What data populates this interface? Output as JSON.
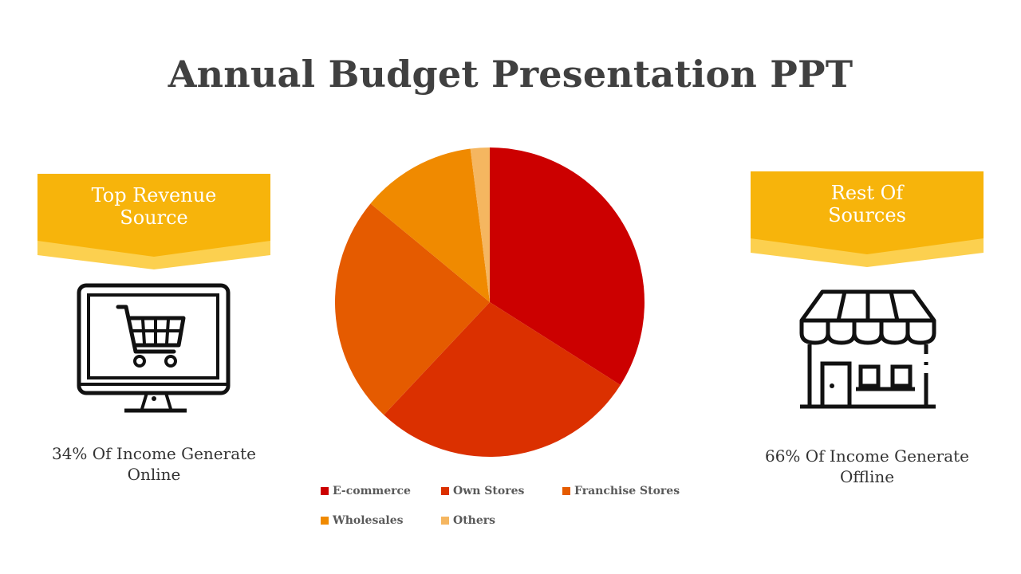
{
  "slide": {
    "title": "Annual Budget Presentation PPT"
  },
  "left_panel": {
    "banner_line1": "Top Revenue",
    "banner_line2": "Source",
    "icon": "computer-shopping-cart-icon",
    "caption_line1": "34% Of Income Generate",
    "caption_line2": "Online"
  },
  "right_panel": {
    "banner_line1": "Rest Of",
    "banner_line2": "Sources",
    "icon": "storefront-icon",
    "caption_line1": "66% Of Income Generate",
    "caption_line2": "Offline"
  },
  "colors": {
    "banner": "#f7b40b",
    "banner_shade": "#fcd04f",
    "icon": "#111111"
  },
  "chart_data": {
    "type": "pie",
    "title": "",
    "slices": [
      {
        "label": "E-commerce",
        "value": 34,
        "color": "#cc0000"
      },
      {
        "label": "Own Stores",
        "value": 28,
        "color": "#db3000"
      },
      {
        "label": "Franchise Stores",
        "value": 24,
        "color": "#e55b00"
      },
      {
        "label": "Wholesales",
        "value": 12,
        "color": "#f08a00"
      },
      {
        "label": "Others",
        "value": 2,
        "color": "#f5b660"
      }
    ],
    "start_angle": "top",
    "direction": "clockwise",
    "legend_position": "bottom"
  }
}
